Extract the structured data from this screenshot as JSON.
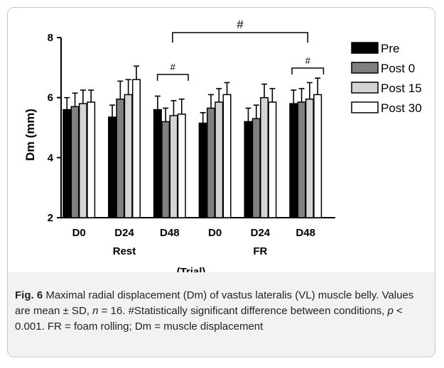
{
  "chart_data": {
    "type": "bar",
    "xlabel": "(Trial)",
    "ylabel": "Dm (mm)",
    "ylim": [
      2,
      8
    ],
    "yticks": [
      2,
      4,
      6,
      8
    ],
    "categories": [
      "D0",
      "D24",
      "D48",
      "D0",
      "D24",
      "D48"
    ],
    "groups": [
      "Rest",
      "FR"
    ],
    "series": [
      {
        "name": "Pre",
        "color": "#000000",
        "values": [
          5.6,
          5.35,
          5.6,
          5.15,
          5.2,
          5.8
        ],
        "errors": [
          0.4,
          0.4,
          0.45,
          0.35,
          0.45,
          0.45
        ]
      },
      {
        "name": "Post 0",
        "color": "#808080",
        "values": [
          5.7,
          5.95,
          5.2,
          5.65,
          5.3,
          5.85
        ],
        "errors": [
          0.45,
          0.6,
          0.45,
          0.45,
          0.45,
          0.45
        ]
      },
      {
        "name": "Post 15",
        "color": "#d4d4d4",
        "values": [
          5.8,
          6.1,
          5.4,
          5.85,
          6.0,
          5.95
        ],
        "errors": [
          0.45,
          0.5,
          0.5,
          0.45,
          0.45,
          0.55
        ]
      },
      {
        "name": "Post 30",
        "color": "#ffffff",
        "values": [
          5.85,
          6.6,
          5.45,
          6.1,
          5.85,
          6.1
        ],
        "errors": [
          0.4,
          0.45,
          0.5,
          0.4,
          0.45,
          0.55
        ]
      }
    ],
    "annotations": [
      "#",
      "#",
      "#"
    ],
    "legend_position": "right"
  },
  "caption": {
    "label": "Fig. 6",
    "text1": " Maximal radial displacement (Dm) of vastus lateralis (VL) muscle belly. Values are mean ± SD, ",
    "n_var": "n",
    "text2": " = 16. #Statistically significant difference between conditions, ",
    "p_var": "p",
    "text3": " < 0.001. FR = foam rolling; Dm = muscle displacement"
  }
}
